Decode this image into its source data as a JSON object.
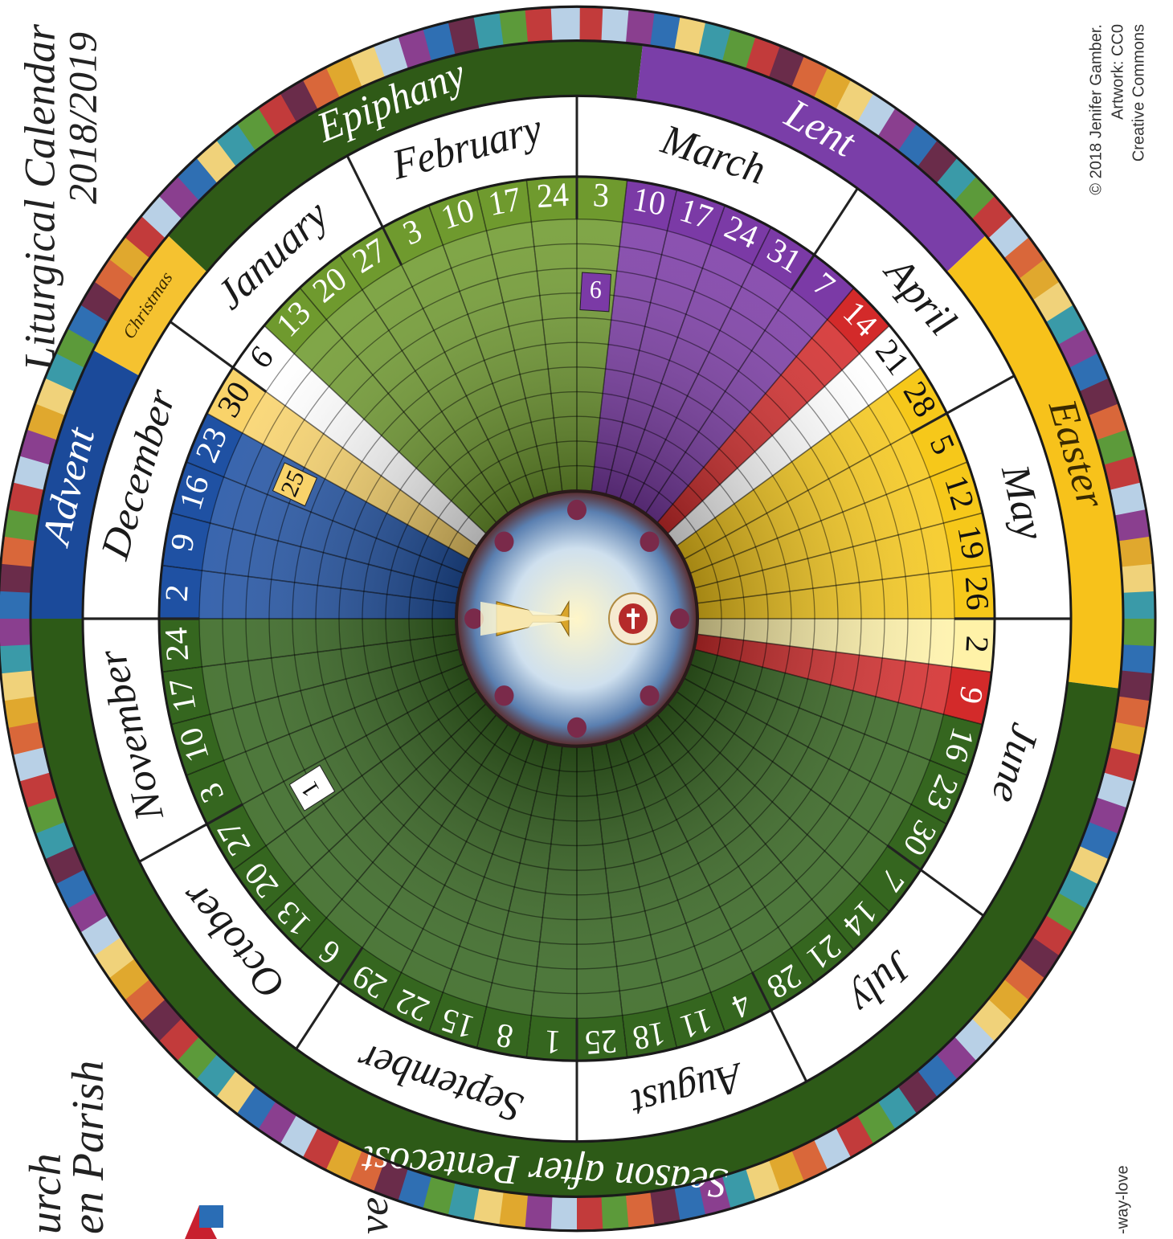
{
  "title": "Liturgical Calendar",
  "years": "2018/2019",
  "credits": [
    "© 2018 Jenifer Gamber.",
    "Artwork: CC0",
    "Creative Commons"
  ],
  "fragments": [
    "urch",
    "en Parish",
    "ve",
    "-way-love"
  ],
  "months": [
    "December",
    "January",
    "February",
    "March",
    "April",
    "May",
    "June",
    "July",
    "August",
    "September",
    "October",
    "November"
  ],
  "seasons": [
    {
      "name": "Advent",
      "color": "#1b4a9a",
      "sundays": [
        {
          "date": 2,
          "color": "#1f51a3"
        },
        {
          "date": 9,
          "color": "#1f51a3"
        },
        {
          "date": 16,
          "color": "#1f51a3"
        },
        {
          "date": 23,
          "color": "#1f51a3",
          "feast": {
            "day": 25,
            "color": "#f9d36a"
          }
        }
      ]
    },
    {
      "name": "Christmas",
      "color": "#f5c230",
      "sundays": [
        {
          "date": 30,
          "color": "#f9d36a"
        },
        {
          "date": 6,
          "color": "#ffffff"
        }
      ]
    },
    {
      "name": "Epiphany",
      "color": "#2f5a17",
      "sundays": [
        {
          "date": 13,
          "color": "#6f9a2e"
        },
        {
          "date": 20,
          "color": "#6f9a2e"
        },
        {
          "date": 27,
          "color": "#6f9a2e"
        },
        {
          "date": 3,
          "color": "#6f9a2e"
        },
        {
          "date": 10,
          "color": "#6f9a2e"
        },
        {
          "date": 17,
          "color": "#6f9a2e"
        },
        {
          "date": 24,
          "color": "#6f9a2e"
        },
        {
          "date": 3,
          "color": "#6f9a2e",
          "feast": {
            "day": 6,
            "color": "#7b3aa6"
          }
        }
      ]
    },
    {
      "name": "Lent",
      "color": "#7a3ea8",
      "sundays": [
        {
          "date": 10,
          "color": "#7b3aa6"
        },
        {
          "date": 17,
          "color": "#7b3aa6"
        },
        {
          "date": 24,
          "color": "#7b3aa6"
        },
        {
          "date": 31,
          "color": "#7b3aa6"
        },
        {
          "date": 7,
          "color": "#7b3aa6"
        },
        {
          "date": 14,
          "color": "#d32a2a"
        }
      ]
    },
    {
      "name": "Easter",
      "color": "#f7c21b",
      "sundays": [
        {
          "date": 21,
          "color": "#ffffff"
        },
        {
          "date": 28,
          "color": "#f6c81a"
        },
        {
          "date": 5,
          "color": "#f6c81a"
        },
        {
          "date": 12,
          "color": "#f6c81a"
        },
        {
          "date": 19,
          "color": "#f6c81a"
        },
        {
          "date": 26,
          "color": "#f6c81a"
        },
        {
          "date": 2,
          "color": "#fff2a8"
        }
      ]
    },
    {
      "name": "Season after Pentecost",
      "color": "#2d5a17",
      "sundays": [
        {
          "date": 9,
          "color": "#d32a2a"
        },
        {
          "date": 16,
          "color": "#35661f"
        },
        {
          "date": 23,
          "color": "#35661f"
        },
        {
          "date": 30,
          "color": "#35661f"
        },
        {
          "date": 7,
          "color": "#35661f"
        },
        {
          "date": 14,
          "color": "#35661f"
        },
        {
          "date": 21,
          "color": "#35661f"
        },
        {
          "date": 28,
          "color": "#35661f"
        },
        {
          "date": 4,
          "color": "#35661f"
        },
        {
          "date": 11,
          "color": "#35661f"
        },
        {
          "date": 18,
          "color": "#35661f"
        },
        {
          "date": 25,
          "color": "#35661f"
        },
        {
          "date": 1,
          "color": "#35661f"
        },
        {
          "date": 8,
          "color": "#35661f"
        },
        {
          "date": 15,
          "color": "#35661f"
        },
        {
          "date": 22,
          "color": "#35661f"
        },
        {
          "date": 29,
          "color": "#35661f"
        },
        {
          "date": 6,
          "color": "#35661f"
        },
        {
          "date": 13,
          "color": "#35661f"
        },
        {
          "date": 20,
          "color": "#35661f"
        },
        {
          "date": 27,
          "color": "#35661f",
          "feast": {
            "day": 1,
            "color": "#ffffff"
          }
        },
        {
          "date": 3,
          "color": "#35661f"
        },
        {
          "date": 10,
          "color": "#35661f"
        },
        {
          "date": 17,
          "color": "#35661f"
        },
        {
          "date": 24,
          "color": "#35661f"
        }
      ]
    }
  ]
}
